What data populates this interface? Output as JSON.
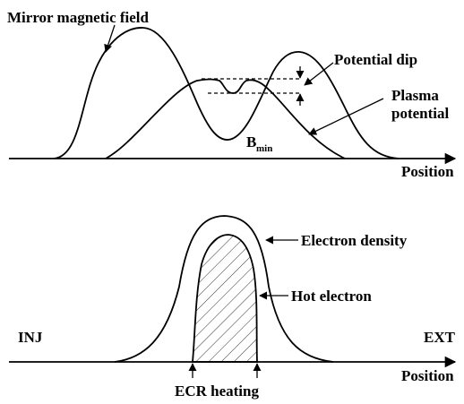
{
  "top": {
    "mirror_field": "Mirror magnetic field",
    "potential_dip": "Potential dip",
    "plasma_potential": [
      "Plasma",
      "potential"
    ],
    "b_min": {
      "symbol": "B",
      "subscript": "min"
    },
    "x_axis": "Position"
  },
  "bottom": {
    "electron_density": "Electron density",
    "hot_electron": "Hot electron",
    "inj": "INJ",
    "ext": "EXT",
    "ecr_heating": "ECR heating",
    "x_axis": "Position"
  }
}
